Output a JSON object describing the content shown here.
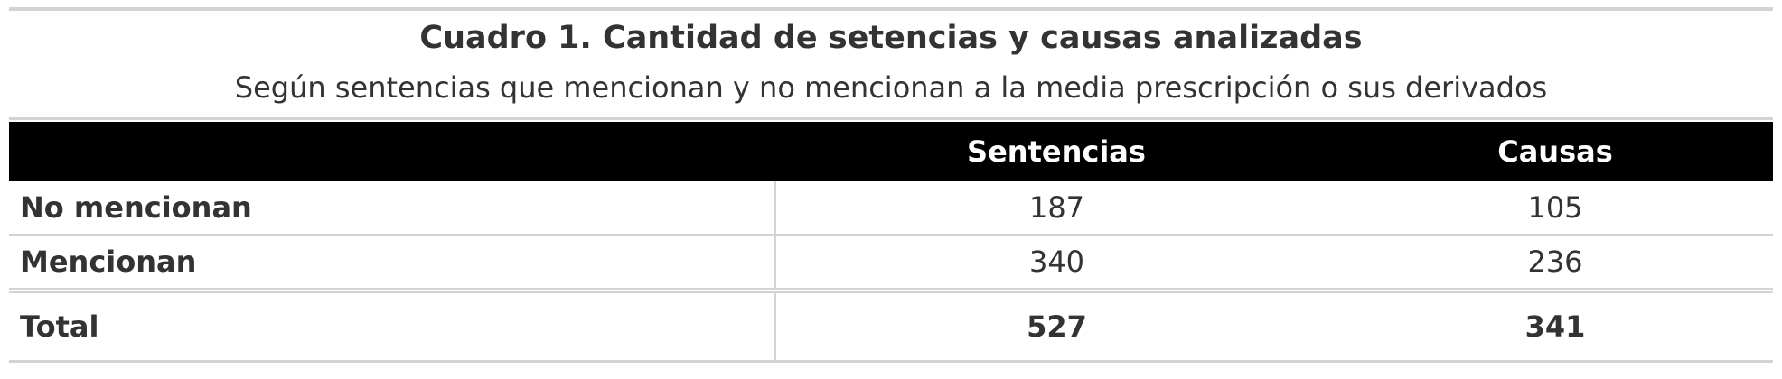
{
  "table": {
    "title": "Cuadro 1. Cantidad de setencias y causas analizadas",
    "subtitle": "Según sentencias que mencionan y no mencionan a la media prescripción o sus derivados",
    "columns": [
      "",
      "Sentencias",
      "Causas"
    ],
    "rows": [
      {
        "label": "No mencionan",
        "sentencias": "187",
        "causas": "105"
      },
      {
        "label": "Mencionan",
        "sentencias": "340",
        "causas": "236"
      }
    ],
    "total": {
      "label": "Total",
      "sentencias": "527",
      "causas": "341"
    }
  },
  "colors": {
    "header_bg": "#000000",
    "header_text": "#ffffff",
    "rule": "#d3d3d3",
    "text": "#333333"
  }
}
